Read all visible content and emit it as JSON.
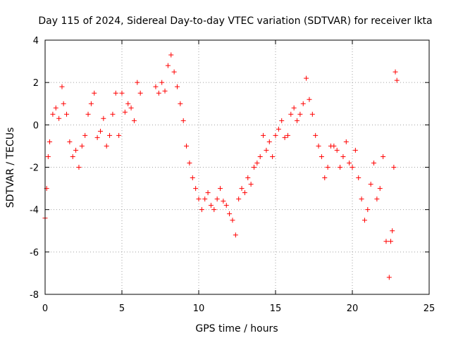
{
  "chart_data": {
    "type": "scatter",
    "title": "Day 115 of 2024, Sidereal Day-to-day VTEC variation (SDTVAR) for receiver lkta",
    "xlabel": "GPS time / hours",
    "ylabel": "SDTVAR / TECUs",
    "xlim": [
      0,
      25
    ],
    "ylim": [
      -8,
      4
    ],
    "xticks": [
      0,
      5,
      10,
      15,
      20,
      25
    ],
    "yticks": [
      -8,
      -6,
      -4,
      -2,
      0,
      2,
      4
    ],
    "grid": true,
    "marker": "+",
    "marker_color": "#ff0000",
    "series": [
      {
        "name": "SDTVAR",
        "color": "#ff0000",
        "x": [
          0.0,
          0.1,
          0.2,
          0.3,
          0.5,
          0.7,
          0.9,
          1.1,
          1.2,
          1.4,
          1.6,
          1.8,
          2.0,
          2.2,
          2.4,
          2.6,
          2.8,
          3.0,
          3.2,
          3.4,
          3.6,
          3.8,
          4.0,
          4.2,
          4.4,
          4.6,
          4.8,
          5.0,
          5.2,
          5.4,
          5.6,
          5.8,
          6.0,
          6.2,
          7.2,
          7.4,
          7.6,
          7.8,
          8.0,
          8.2,
          8.4,
          8.6,
          8.8,
          9.0,
          9.2,
          9.4,
          9.6,
          9.8,
          10.0,
          10.2,
          10.4,
          10.6,
          10.8,
          11.0,
          11.2,
          11.4,
          11.6,
          11.8,
          12.0,
          12.2,
          12.4,
          12.6,
          12.8,
          13.0,
          13.2,
          13.4,
          13.6,
          13.8,
          14.0,
          14.2,
          14.4,
          14.6,
          14.8,
          15.0,
          15.2,
          15.4,
          15.6,
          15.8,
          16.0,
          16.2,
          16.4,
          16.6,
          16.8,
          17.0,
          17.2,
          17.4,
          17.6,
          17.8,
          18.0,
          18.2,
          18.4,
          18.6,
          18.8,
          19.0,
          19.2,
          19.4,
          19.6,
          19.8,
          20.0,
          20.2,
          20.4,
          20.6,
          20.8,
          21.0,
          21.2,
          21.4,
          21.6,
          21.8,
          22.0,
          22.2,
          22.4,
          22.5,
          22.6,
          22.7,
          22.8,
          22.9
        ],
        "y": [
          -4.4,
          -3.0,
          -1.5,
          -0.8,
          0.5,
          0.8,
          0.3,
          1.8,
          1.0,
          0.5,
          -0.8,
          -1.5,
          -1.2,
          -2.0,
          -1.0,
          -0.5,
          0.5,
          1.0,
          1.5,
          -0.6,
          -0.3,
          0.3,
          -1.0,
          -0.5,
          0.5,
          1.5,
          -0.5,
          1.5,
          0.6,
          1.0,
          0.8,
          0.2,
          2.0,
          1.5,
          1.8,
          1.5,
          2.0,
          1.6,
          2.8,
          3.3,
          2.5,
          1.8,
          1.0,
          0.2,
          -1.0,
          -1.8,
          -2.5,
          -3.0,
          -3.5,
          -4.0,
          -3.5,
          -3.2,
          -3.8,
          -4.0,
          -3.5,
          -3.0,
          -3.6,
          -3.8,
          -4.2,
          -4.5,
          -5.2,
          -3.5,
          -3.0,
          -3.2,
          -2.5,
          -2.8,
          -2.0,
          -1.8,
          -1.5,
          -0.5,
          -1.2,
          -0.8,
          -1.5,
          -0.5,
          -0.2,
          0.2,
          -0.6,
          -0.5,
          0.5,
          0.8,
          0.2,
          0.5,
          1.0,
          2.2,
          1.2,
          0.5,
          -0.5,
          -1.0,
          -1.5,
          -2.5,
          -2.0,
          -1.0,
          -1.0,
          -1.2,
          -2.0,
          -1.5,
          -0.8,
          -1.8,
          -2.0,
          -1.2,
          -2.5,
          -3.5,
          -4.5,
          -4.0,
          -2.8,
          -1.8,
          -3.5,
          -3.0,
          -1.5,
          -5.5,
          -7.2,
          -5.5,
          -5.0,
          -2.0,
          2.5,
          2.1
        ]
      }
    ]
  }
}
